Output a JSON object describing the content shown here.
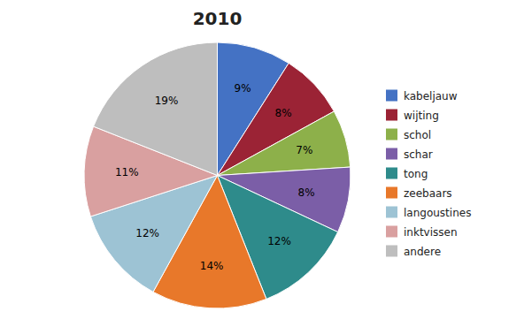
{
  "chart_data": {
    "type": "pie",
    "title": "2010",
    "categories": [
      "kabeljauw",
      "wijting",
      "schol",
      "schar",
      "tong",
      "zeebaars",
      "langoustines",
      "inktvissen",
      "andere"
    ],
    "values": [
      9,
      8,
      7,
      8,
      12,
      14,
      12,
      11,
      19
    ],
    "value_labels": [
      "9%",
      "8%",
      "7%",
      "8%",
      "12%",
      "14%",
      "12%",
      "11%",
      "19%"
    ],
    "colors": [
      "#4472C4",
      "#9B2335",
      "#8DB04A",
      "#7B5EA7",
      "#2E8B8B",
      "#E8782A",
      "#9DC3D4",
      "#D9A0A0",
      "#BEBEBE"
    ],
    "data_labels": true,
    "legend": "right"
  }
}
